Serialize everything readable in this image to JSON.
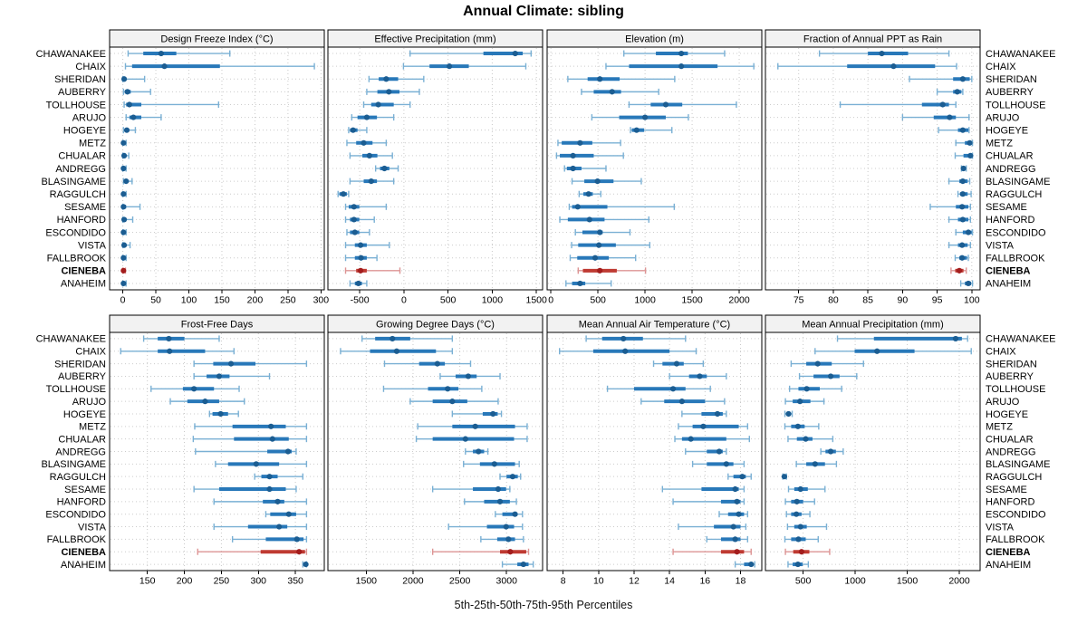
{
  "title": "Annual Climate: sibling",
  "caption": "5th-25th-50th-75th-95th Percentiles",
  "highlight_station": "CIENEBA",
  "stations": [
    "CHAWANAKEE",
    "CHAIX",
    "SHERIDAN",
    "AUBERRY",
    "TOLLHOUSE",
    "ARUJO",
    "HOGEYE",
    "METZ",
    "CHUALAR",
    "ANDREGG",
    "BLASINGAME",
    "RAGGULCH",
    "SESAME",
    "HANFORD",
    "ESCONDIDO",
    "VISTA",
    "FALLBROOK",
    "CIENEBA",
    "ANAHEIM"
  ],
  "colors": {
    "series_blue": "#2878b9",
    "series_blue_light": "#7ab0d4",
    "series_blue_dark": "#1b5d92",
    "highlight_red": "#bf3a32",
    "highlight_red_light": "#dd9494",
    "highlight_red_dark": "#a31d1d",
    "grid": "#c9c9c9",
    "row_guide": "#cccccc",
    "header_fill": "#f2f2f2",
    "border": "#000000"
  },
  "chart_data": {
    "type": "scatter",
    "subtype": "horizontal-percentile-dot-whisker",
    "percentiles": [
      5,
      25,
      50,
      75,
      95
    ],
    "legend_note": "thin line = 5th-95th, thick line = 25th-75th, dot = 50th",
    "panels": [
      {
        "title": "Design Freeze Index (°C)",
        "ticks": [
          0,
          50,
          100,
          150,
          200,
          250,
          300
        ],
        "xlim": [
          -20,
          305
        ],
        "values": [
          [
            8,
            31,
            58,
            81,
            162
          ],
          [
            4,
            14,
            63,
            147,
            290
          ],
          [
            0,
            1,
            2,
            5,
            33
          ],
          [
            1,
            3,
            7,
            12,
            42
          ],
          [
            2,
            5,
            10,
            28,
            145
          ],
          [
            5,
            10,
            16,
            28,
            58
          ],
          [
            1,
            4,
            6,
            9,
            19
          ],
          [
            0,
            0,
            1,
            3,
            5
          ],
          [
            0,
            0,
            2,
            5,
            9
          ],
          [
            0,
            0,
            1,
            3,
            5
          ],
          [
            1,
            3,
            5,
            8,
            14
          ],
          [
            0,
            0,
            1,
            3,
            5
          ],
          [
            0,
            0,
            1,
            5,
            26
          ],
          [
            0,
            0,
            2,
            5,
            15
          ],
          [
            0,
            0,
            1,
            3,
            5
          ],
          [
            0,
            0,
            2,
            5,
            11
          ],
          [
            0,
            0,
            1,
            3,
            5
          ],
          [
            0,
            0,
            1,
            2,
            4
          ],
          [
            0,
            0,
            1,
            3,
            5
          ]
        ]
      },
      {
        "title": "Effective Precipitation (mm)",
        "ticks": [
          -500,
          0,
          500,
          1000,
          1500
        ],
        "xlim": [
          -860,
          1570
        ],
        "values": [
          [
            70,
            900,
            1260,
            1345,
            1440
          ],
          [
            -5,
            290,
            515,
            735,
            1380
          ],
          [
            -395,
            -285,
            -200,
            -65,
            225
          ],
          [
            -420,
            -300,
            -170,
            -50,
            175
          ],
          [
            -455,
            -370,
            -290,
            -115,
            70
          ],
          [
            -590,
            -525,
            -420,
            -305,
            -115
          ],
          [
            -625,
            -610,
            -575,
            -525,
            -420
          ],
          [
            -645,
            -540,
            -455,
            -355,
            -200
          ],
          [
            -610,
            -470,
            -390,
            -300,
            -130
          ],
          [
            -320,
            -270,
            -220,
            -165,
            -65
          ],
          [
            -610,
            -455,
            -370,
            -305,
            -115
          ],
          [
            -745,
            -730,
            -685,
            -645,
            -625
          ],
          [
            -660,
            -625,
            -565,
            -505,
            -200
          ],
          [
            -660,
            -610,
            -565,
            -505,
            -335
          ],
          [
            -645,
            -610,
            -555,
            -505,
            -390
          ],
          [
            -660,
            -555,
            -490,
            -420,
            -165
          ],
          [
            -660,
            -555,
            -485,
            -420,
            -305
          ],
          [
            -660,
            -540,
            -490,
            -420,
            -45
          ],
          [
            -610,
            -555,
            -515,
            -475,
            -420
          ]
        ]
      },
      {
        "title": "Elevation (m)",
        "ticks": [
          0,
          500,
          1000,
          1500,
          2000
        ],
        "xlim": [
          -40,
          2240
        ],
        "values": [
          [
            775,
            1115,
            1385,
            1455,
            1845
          ],
          [
            585,
            830,
            1385,
            1770,
            2155
          ],
          [
            180,
            390,
            520,
            730,
            1315
          ],
          [
            325,
            455,
            650,
            745,
            1145
          ],
          [
            830,
            1060,
            1220,
            1395,
            1970
          ],
          [
            435,
            725,
            1000,
            1220,
            1460
          ],
          [
            845,
            860,
            910,
            990,
            1285
          ],
          [
            75,
            115,
            310,
            440,
            740
          ],
          [
            60,
            95,
            235,
            455,
            770
          ],
          [
            145,
            170,
            235,
            325,
            585
          ],
          [
            225,
            355,
            495,
            665,
            960
          ],
          [
            300,
            345,
            400,
            445,
            530
          ],
          [
            195,
            225,
            285,
            600,
            1310
          ],
          [
            95,
            180,
            410,
            570,
            1040
          ],
          [
            260,
            335,
            520,
            550,
            840
          ],
          [
            220,
            290,
            510,
            690,
            1050
          ],
          [
            205,
            280,
            470,
            615,
            900
          ],
          [
            290,
            340,
            520,
            700,
            1005
          ],
          [
            160,
            225,
            310,
            365,
            640
          ]
        ]
      },
      {
        "title": "Fraction of Annual PPT as Rain",
        "ticks": [
          75,
          80,
          85,
          90,
          95,
          100
        ],
        "xlim": [
          70.2,
          101.2
        ],
        "values": [
          [
            78,
            85,
            87,
            90.8,
            96.7
          ],
          [
            72,
            82,
            88.7,
            94.7,
            97.8
          ],
          [
            91,
            97.3,
            98.7,
            99.7,
            100
          ],
          [
            95,
            97.3,
            97.9,
            98.5,
            98.7
          ],
          [
            81,
            92.8,
            95.8,
            96.7,
            97.7
          ],
          [
            90,
            94.5,
            96.8,
            97.7,
            99.6
          ],
          [
            95.2,
            98,
            98.7,
            99.5,
            99.6
          ],
          [
            97.7,
            99,
            99.7,
            100,
            100.1
          ],
          [
            97.6,
            98.8,
            99.8,
            100,
            100.1
          ],
          [
            98.5,
            98.6,
            98.8,
            99,
            99.2
          ],
          [
            96.7,
            98.2,
            98.7,
            99.4,
            99.7
          ],
          [
            98,
            98.3,
            98.7,
            99.4,
            99.9
          ],
          [
            94,
            97.7,
            98.6,
            99.5,
            99.8
          ],
          [
            96.7,
            98,
            98.7,
            99.5,
            99.8
          ],
          [
            97.7,
            98.7,
            99.5,
            100,
            100.1
          ],
          [
            96.7,
            98,
            98.6,
            99.4,
            99.8
          ],
          [
            97.6,
            98.2,
            98.6,
            99.3,
            99.5
          ],
          [
            97,
            97.6,
            98.2,
            98.8,
            99.2
          ],
          [
            98.4,
            99,
            99.5,
            99.9,
            100.1
          ]
        ]
      },
      {
        "title": "Frost-Free Days",
        "ticks": [
          150,
          200,
          250,
          300,
          350
        ],
        "xlim": [
          99,
          389
        ],
        "values": [
          [
            145,
            164,
            179,
            200,
            247
          ],
          [
            114,
            164,
            180,
            228,
            267
          ],
          [
            213,
            239,
            263,
            296,
            365
          ],
          [
            213,
            230,
            247,
            261,
            315
          ],
          [
            155,
            198,
            213,
            240,
            274
          ],
          [
            181,
            204,
            228,
            247,
            281
          ],
          [
            234,
            238,
            249,
            259,
            273
          ],
          [
            214,
            265,
            317,
            337,
            365
          ],
          [
            212,
            267,
            319,
            341,
            365
          ],
          [
            215,
            312,
            340,
            345,
            351
          ],
          [
            242,
            259,
            297,
            328,
            365
          ],
          [
            295,
            304,
            315,
            326,
            360
          ],
          [
            213,
            247,
            315,
            337,
            351
          ],
          [
            240,
            306,
            326,
            335,
            365
          ],
          [
            310,
            316,
            341,
            351,
            365
          ],
          [
            240,
            286,
            328,
            339,
            365
          ],
          [
            265,
            310,
            352,
            361,
            365
          ],
          [
            218,
            303,
            355,
            363,
            365
          ],
          [
            360,
            362,
            364,
            365,
            365
          ]
        ]
      },
      {
        "title": "Growing Degree Days (°C)",
        "ticks": [
          1500,
          2000,
          2500,
          3000
        ],
        "xlim": [
          1090,
          3385
        ],
        "values": [
          [
            1455,
            1595,
            1780,
            1970,
            2420
          ],
          [
            1225,
            1540,
            1825,
            2245,
            2420
          ],
          [
            1695,
            2065,
            2260,
            2340,
            2615
          ],
          [
            2290,
            2455,
            2590,
            2680,
            2930
          ],
          [
            1685,
            2160,
            2370,
            2485,
            2735
          ],
          [
            1970,
            2210,
            2420,
            2580,
            2910
          ],
          [
            2420,
            2745,
            2855,
            2905,
            2945
          ],
          [
            2050,
            2420,
            2665,
            3090,
            3220
          ],
          [
            2035,
            2210,
            2560,
            3080,
            3220
          ],
          [
            2560,
            2640,
            2700,
            2760,
            2800
          ],
          [
            2540,
            2715,
            2870,
            3090,
            3135
          ],
          [
            2930,
            3000,
            3065,
            3120,
            3150
          ],
          [
            2210,
            2640,
            2910,
            2995,
            3035
          ],
          [
            2550,
            2760,
            2930,
            3035,
            3105
          ],
          [
            2880,
            2955,
            3090,
            3115,
            3170
          ],
          [
            2380,
            2790,
            2995,
            3080,
            3170
          ],
          [
            2725,
            2900,
            3020,
            3090,
            3180
          ],
          [
            2210,
            2930,
            3040,
            3210,
            3235
          ],
          [
            2955,
            3115,
            3180,
            3235,
            3285
          ]
        ]
      },
      {
        "title": "Mean Annual Air Temperature (°C)",
        "ticks": [
          8,
          10,
          12,
          14,
          16,
          18
        ],
        "xlim": [
          7.1,
          19.2
        ],
        "values": [
          [
            9.3,
            10.2,
            11.4,
            12.5,
            14.9
          ],
          [
            7.8,
            9.7,
            11.5,
            14.0,
            15.5
          ],
          [
            13.1,
            13.6,
            14.4,
            14.8,
            15.9
          ],
          [
            14.0,
            15.1,
            15.7,
            16.1,
            17.2
          ],
          [
            10.5,
            12.0,
            14.2,
            14.9,
            16.3
          ],
          [
            12.4,
            13.7,
            14.7,
            16.0,
            17.1
          ],
          [
            14.7,
            15.8,
            16.7,
            17.0,
            17.2
          ],
          [
            14.5,
            15.3,
            15.9,
            17.9,
            18.4
          ],
          [
            14.3,
            14.7,
            15.2,
            17.2,
            18.5
          ],
          [
            14.9,
            16.1,
            16.8,
            17.0,
            17.2
          ],
          [
            15.3,
            16.1,
            17.2,
            17.6,
            18.2
          ],
          [
            17.3,
            17.6,
            18.1,
            18.3,
            18.6
          ],
          [
            13.6,
            15.8,
            17.7,
            17.9,
            18.2
          ],
          [
            14.2,
            16.9,
            17.8,
            18.0,
            18.2
          ],
          [
            16.8,
            17.3,
            17.9,
            18.2,
            18.4
          ],
          [
            14.5,
            16.5,
            17.6,
            18.0,
            18.3
          ],
          [
            16.1,
            16.9,
            17.7,
            18.0,
            18.4
          ],
          [
            14.2,
            16.9,
            17.8,
            18.2,
            18.6
          ],
          [
            17.7,
            18.2,
            18.6,
            18.7,
            18.8
          ]
        ]
      },
      {
        "title": "Mean Annual Precipitation (mm)",
        "ticks": [
          500,
          1000,
          1500,
          2000
        ],
        "xlim": [
          138,
          2200
        ],
        "values": [
          [
            830,
            1180,
            1965,
            2025,
            2080
          ],
          [
            615,
            995,
            1210,
            1570,
            2115
          ],
          [
            385,
            530,
            640,
            775,
            1080
          ],
          [
            465,
            600,
            765,
            850,
            1015
          ],
          [
            370,
            455,
            535,
            660,
            870
          ],
          [
            330,
            400,
            470,
            570,
            700
          ],
          [
            325,
            340,
            360,
            380,
            395
          ],
          [
            325,
            385,
            450,
            515,
            650
          ],
          [
            355,
            440,
            525,
            590,
            785
          ],
          [
            670,
            715,
            765,
            815,
            885
          ],
          [
            435,
            530,
            615,
            710,
            820
          ],
          [
            305,
            315,
            320,
            330,
            340
          ],
          [
            360,
            415,
            475,
            545,
            710
          ],
          [
            330,
            385,
            440,
            500,
            610
          ],
          [
            340,
            385,
            435,
            485,
            565
          ],
          [
            350,
            415,
            475,
            535,
            725
          ],
          [
            325,
            385,
            455,
            525,
            645
          ],
          [
            330,
            405,
            485,
            560,
            755
          ],
          [
            355,
            400,
            450,
            495,
            550
          ]
        ]
      }
    ]
  }
}
